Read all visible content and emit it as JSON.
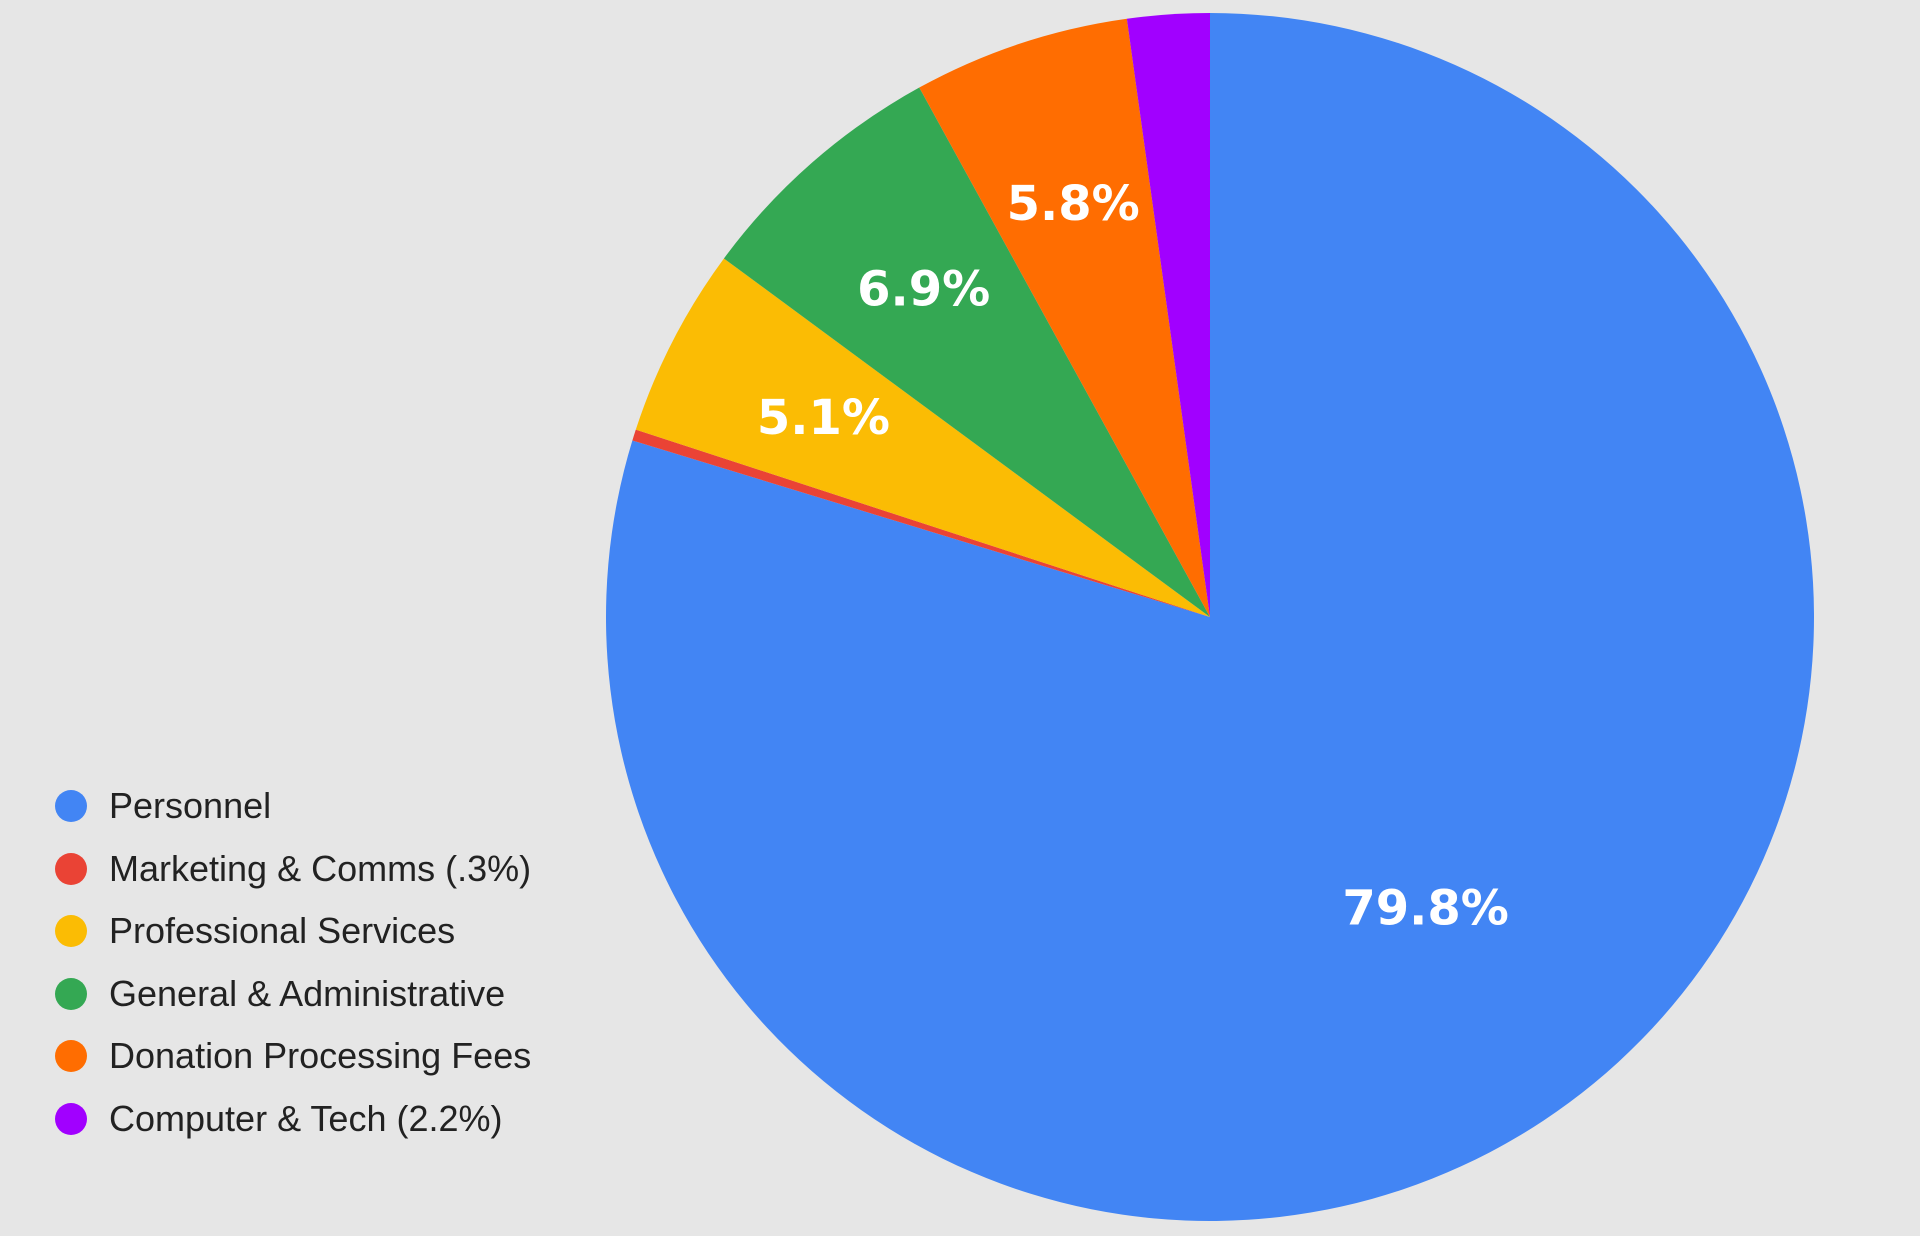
{
  "chart_data": {
    "type": "pie",
    "title": "",
    "legend_position": "bottom-left",
    "start_angle_deg": 0,
    "direction": "clockwise",
    "slices": [
      {
        "name": "Personnel",
        "value": 79.8,
        "label": "79.8%",
        "color": "#4285f4"
      },
      {
        "name": "Marketing & Comms (.3%)",
        "value": 0.3,
        "label": "",
        "color": "#ea4335"
      },
      {
        "name": "Professional Services",
        "value": 5.1,
        "label": "5.1%",
        "color": "#fbbc04"
      },
      {
        "name": "General & Administrative",
        "value": 6.9,
        "label": "6.9%",
        "color": "#34a853"
      },
      {
        "name": "Donation Processing Fees",
        "value": 5.8,
        "label": "5.8%",
        "color": "#ff6d01"
      },
      {
        "name": "Computer & Tech (2.2%)",
        "value": 2.2,
        "label": "",
        "color": "#a100ff"
      }
    ]
  }
}
